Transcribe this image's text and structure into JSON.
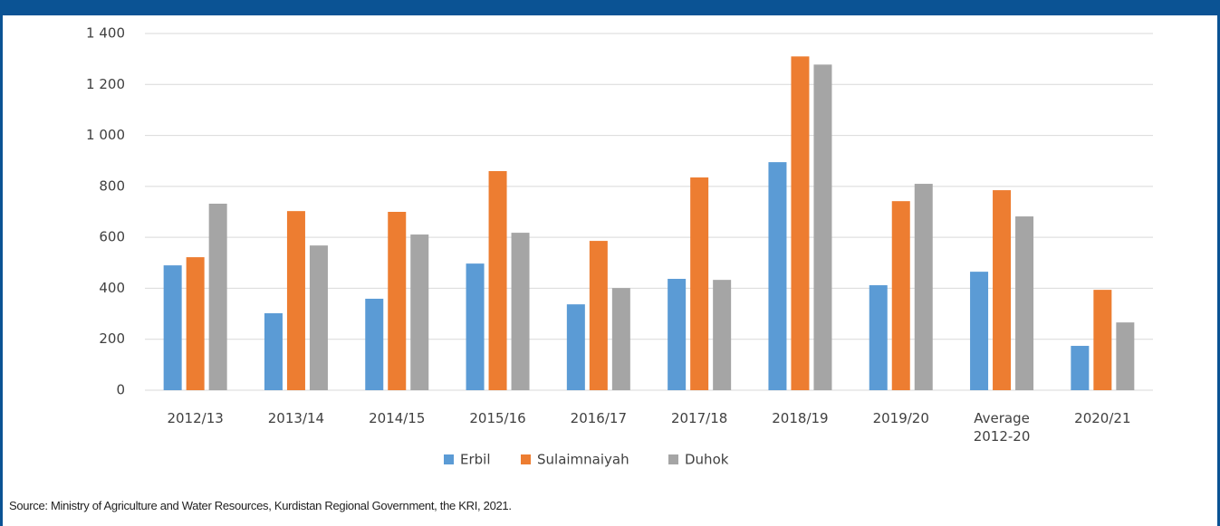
{
  "chart_data": {
    "type": "bar",
    "categories": [
      "2012/13",
      "2013/14",
      "2014/15",
      "2015/16",
      "2016/17",
      "2017/18",
      "2018/19",
      "2019/20",
      "Average 2012-20",
      "2020/21"
    ],
    "series": [
      {
        "name": "Erbil",
        "color": "#5b9bd5",
        "values": [
          490,
          302,
          359,
          497,
          337,
          437,
          895,
          412,
          465,
          174
        ]
      },
      {
        "name": "Sulaimnaiyah",
        "color": "#ed7d31",
        "values": [
          522,
          703,
          700,
          860,
          586,
          835,
          1310,
          742,
          785,
          394
        ]
      },
      {
        "name": "Duhok",
        "color": "#a5a5a5",
        "values": [
          732,
          568,
          611,
          618,
          401,
          433,
          1278,
          810,
          682,
          266
        ]
      }
    ],
    "ylim": [
      0,
      1400
    ],
    "yticks": [
      0,
      200,
      400,
      600,
      800,
      {
        "value": 1000,
        "label": "1 000"
      },
      {
        "value": 1200,
        "label": "1 200"
      },
      {
        "value": 1400,
        "label": "1 400"
      }
    ],
    "grid": true,
    "legend": "bottom",
    "source": "Source: Ministry of Agriculture and Water Resources, Kurdistan Regional Government, the KRI, 2021."
  }
}
